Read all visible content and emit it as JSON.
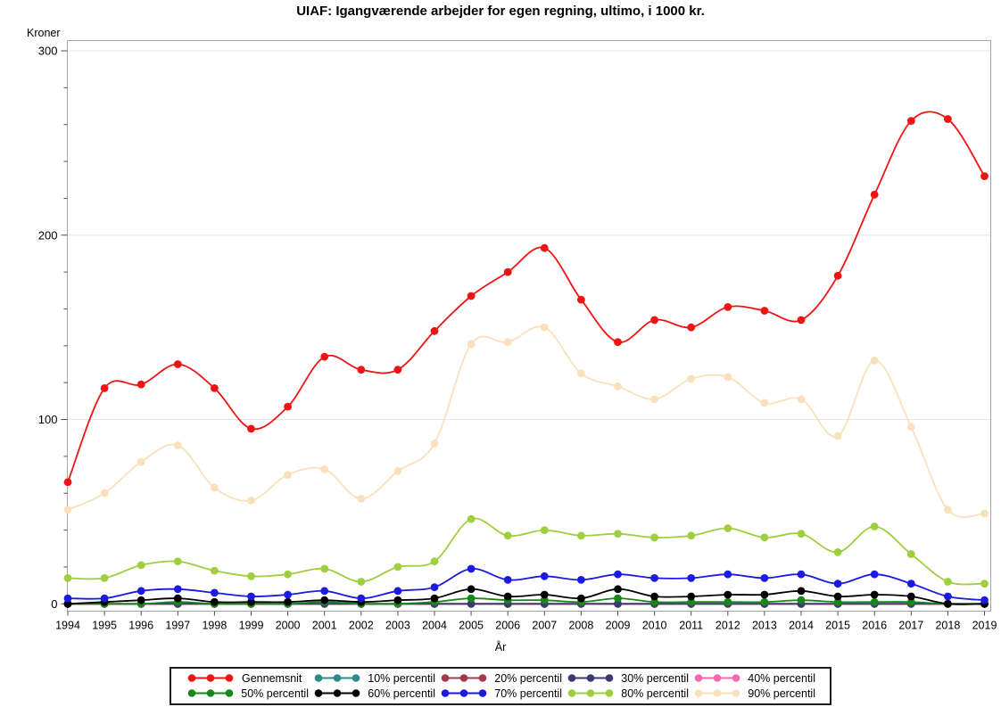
{
  "title": "UIAF: Igangværende arbejder for egen regning, ultimo, i 1000 kr.",
  "y_axis_title": "Kroner",
  "x_axis_title": "År",
  "chart_data": {
    "type": "line",
    "title": "UIAF: Igangværende arbejder for egen regning, ultimo, i 1000 kr.",
    "xlabel": "År",
    "ylabel": "Kroner",
    "ylim": [
      0,
      300
    ],
    "yticks": [
      0,
      100,
      200,
      300
    ],
    "y_minor_tick_step": 20,
    "grid": "horizontal-at-major-ticks",
    "legend_position": "bottom",
    "marker": "filled-circle",
    "interpolation": "smooth-spline",
    "x": [
      1994,
      1995,
      1996,
      1997,
      1998,
      1999,
      2000,
      2001,
      2002,
      2003,
      2004,
      2005,
      2006,
      2007,
      2008,
      2009,
      2010,
      2011,
      2012,
      2013,
      2014,
      2015,
      2016,
      2017,
      2018,
      2019
    ],
    "series": [
      {
        "name": "Gennemsnit",
        "color": "#ee1414",
        "values": [
          66,
          117,
          119,
          130,
          117,
          95,
          107,
          134,
          127,
          127,
          148,
          167,
          180,
          193,
          165,
          142,
          154,
          150,
          161,
          159,
          154,
          178,
          222,
          262,
          263,
          232
        ]
      },
      {
        "name": "10% percentil",
        "color": "#2e8a8a",
        "values": [
          0,
          0,
          0,
          0,
          0,
          0,
          0,
          0,
          0,
          0,
          0,
          0,
          0,
          0,
          0,
          0,
          0,
          0,
          0,
          0,
          0,
          0,
          0,
          0,
          0,
          0
        ]
      },
      {
        "name": "20% percentil",
        "color": "#a13b47",
        "values": [
          0,
          0,
          0,
          0,
          0,
          0,
          0,
          0,
          0,
          0,
          0,
          0,
          0,
          0,
          0,
          0,
          0,
          0,
          0,
          0,
          0,
          0,
          0,
          0,
          0,
          0
        ]
      },
      {
        "name": "30% percentil",
        "color": "#3a3a6e",
        "values": [
          0,
          0,
          0,
          0,
          0,
          0,
          0,
          0,
          0,
          0,
          0,
          0,
          0,
          0,
          0,
          0,
          0,
          0,
          0,
          0,
          0,
          0,
          0,
          0,
          0,
          0
        ]
      },
      {
        "name": "40% percentil",
        "color": "#f768b1",
        "values": [
          0,
          0,
          0,
          0,
          0,
          0,
          0,
          0,
          0,
          0,
          0,
          0,
          0,
          0,
          0,
          0,
          0,
          0,
          0,
          0,
          0,
          0,
          0,
          0,
          0,
          0
        ]
      },
      {
        "name": "50% percentil",
        "color": "#188718",
        "values": [
          0,
          0,
          0,
          1,
          0,
          0,
          0,
          1,
          0,
          0,
          1,
          3,
          2,
          2,
          1,
          3,
          1,
          1,
          1,
          1,
          2,
          1,
          1,
          1,
          0,
          0
        ]
      },
      {
        "name": "60% percentil",
        "color": "#000000",
        "values": [
          0,
          1,
          2,
          3,
          1,
          1,
          1,
          2,
          1,
          2,
          3,
          8,
          4,
          5,
          3,
          8,
          4,
          4,
          5,
          5,
          7,
          4,
          5,
          4,
          0,
          0
        ]
      },
      {
        "name": "70% percentil",
        "color": "#1a1ae0",
        "values": [
          3,
          3,
          7,
          8,
          6,
          4,
          5,
          7,
          3,
          7,
          9,
          19,
          13,
          15,
          13,
          16,
          14,
          14,
          16,
          14,
          16,
          11,
          16,
          11,
          4,
          2
        ]
      },
      {
        "name": "80% percentil",
        "color": "#9fce3f",
        "values": [
          14,
          14,
          21,
          23,
          18,
          15,
          16,
          19,
          12,
          20,
          23,
          46,
          37,
          40,
          37,
          38,
          36,
          37,
          41,
          36,
          38,
          28,
          42,
          27,
          12,
          11
        ]
      },
      {
        "name": "90% percentil",
        "color": "#fae0bc",
        "values": [
          51,
          60,
          77,
          86,
          63,
          56,
          70,
          73,
          57,
          72,
          87,
          141,
          142,
          150,
          125,
          118,
          111,
          122,
          123,
          109,
          111,
          91,
          132,
          96,
          51,
          49
        ]
      }
    ]
  },
  "colors": {
    "grid": "#e6e6e6",
    "frame": "#a6a6a6",
    "tick": "#4d4d4d",
    "text": "#000000"
  }
}
